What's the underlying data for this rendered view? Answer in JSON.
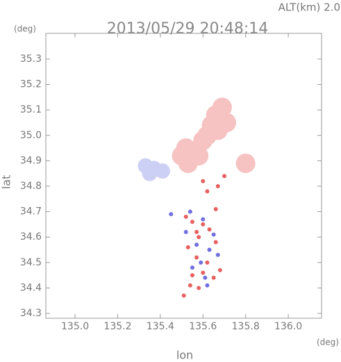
{
  "chart_data": {
    "type": "scatter",
    "title": "2013/05/29 20:48:14",
    "annotation": "ALT(km) 2.0",
    "y_unit": "(deg)",
    "x_unit": "(deg)",
    "x_label": "lon",
    "y_label": "lat",
    "xlim": [
      134.863,
      136.156
    ],
    "ylim": [
      34.281,
      35.401
    ],
    "xticks": [
      {
        "value": 135.0,
        "label": "135.0"
      },
      135.2,
      135.4,
      135.6,
      135.8,
      {
        "value": 136.0,
        "label": "136.0"
      }
    ],
    "yticks": [
      34.3,
      34.4,
      34.5,
      34.6,
      34.7,
      34.8,
      34.9,
      {
        "value": 35.0,
        "label": "35.0"
      },
      35.1,
      35.2,
      35.3
    ],
    "series": [
      {
        "color": "#f6c2c2",
        "x": [
          135.66,
          135.69,
          135.64,
          135.62,
          135.6,
          135.67,
          135.52,
          135.5,
          135.53,
          135.8,
          135.58,
          135.71
        ],
        "y": [
          35.08,
          35.11,
          35.04,
          35.0,
          34.98,
          35.02,
          34.95,
          34.92,
          34.89,
          34.89,
          34.92,
          35.05
        ]
      },
      {
        "color": "#ccd0f4",
        "x": [
          135.33,
          135.37,
          135.41,
          135.35
        ],
        "y": [
          34.88,
          34.87,
          34.86,
          34.85
        ]
      },
      {
        "color": "#e86060",
        "x": [
          135.52,
          135.55,
          135.6,
          135.63,
          135.58,
          135.66,
          135.53,
          135.57,
          135.62,
          135.68,
          135.55,
          135.6,
          135.65,
          135.51,
          135.58,
          135.54,
          135.67,
          135.62,
          135.6,
          135.57,
          135.7,
          135.66
        ],
        "y": [
          34.68,
          34.66,
          34.65,
          34.63,
          34.6,
          34.58,
          34.56,
          34.52,
          34.5,
          34.47,
          34.45,
          34.46,
          34.44,
          34.37,
          34.4,
          34.41,
          34.8,
          34.78,
          34.82,
          34.62,
          34.84,
          34.71
        ]
      },
      {
        "color": "#7070e0",
        "x": [
          135.54,
          135.6,
          135.65,
          135.57,
          135.63,
          135.52,
          135.59,
          135.55,
          135.62,
          135.67,
          135.45,
          135.61
        ],
        "y": [
          34.7,
          34.67,
          34.61,
          34.57,
          34.55,
          34.62,
          34.5,
          34.48,
          34.41,
          34.53,
          34.69,
          34.44
        ]
      }
    ]
  }
}
